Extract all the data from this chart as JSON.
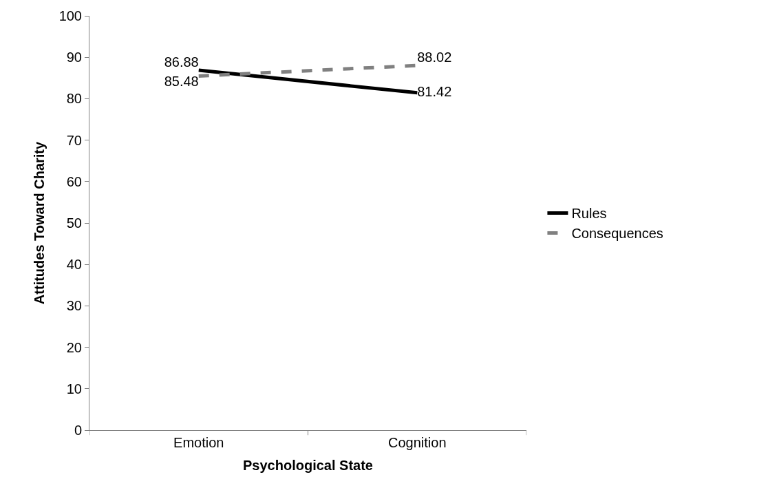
{
  "chart_data": {
    "type": "line",
    "xlabel": "Psychological State",
    "ylabel": "Attitudes Toward Charity",
    "categories": [
      "Emotion",
      "Cognition"
    ],
    "series": [
      {
        "name": "Rules",
        "color": "#000000",
        "values": [
          86.88,
          81.42
        ],
        "line_style": "solid"
      },
      {
        "name": "Consequences",
        "color": "#808080",
        "values": [
          85.48,
          88.02
        ],
        "line_style": "dashed"
      }
    ],
    "ylim": [
      0,
      100
    ],
    "yticks": [
      0,
      10,
      20,
      30,
      40,
      50,
      60,
      70,
      80,
      90,
      100
    ],
    "legend": "right",
    "marker": "none",
    "data_labels": true
  }
}
